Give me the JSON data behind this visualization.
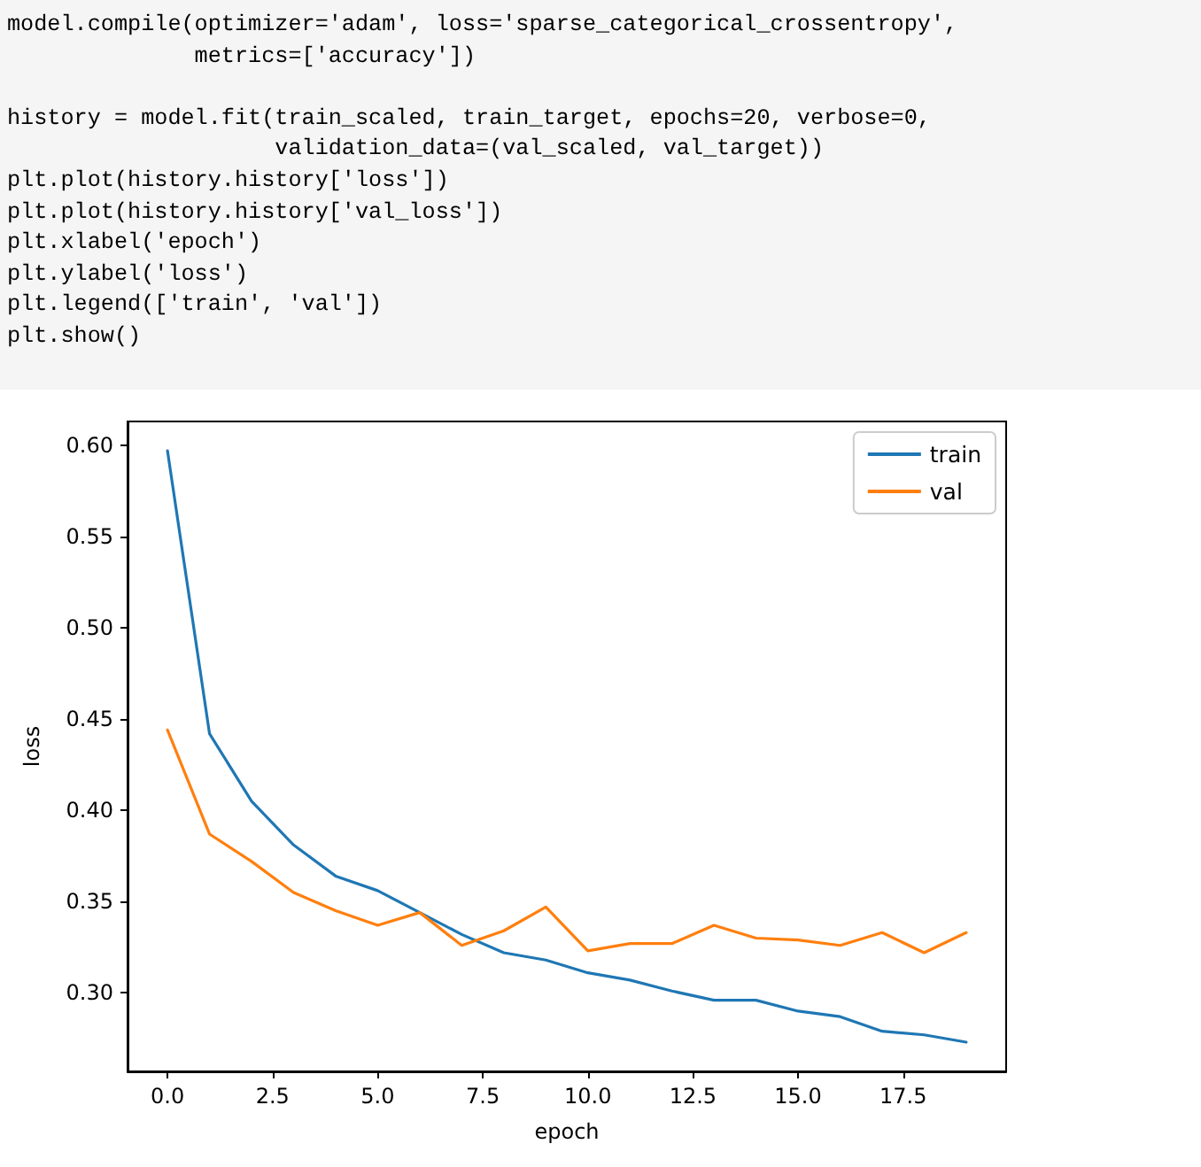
{
  "chart_data": {
    "type": "line",
    "annotations": [
      "model.compile(optimizer='adam', loss='sparse_categorical_crossentropy',\n              metrics=['accuracy'])\n\nhistory = model.fit(train_scaled, train_target, epochs=20, verbose=0,\n                    validation_data=(val_scaled, val_target))\nplt.plot(history.history['loss'])\nplt.plot(history.history['val_loss'])\nplt.xlabel('epoch')\nplt.ylabel('loss')\nplt.legend(['train', 'val'])\nplt.show()"
    ],
    "xlabel": "epoch",
    "ylabel": "loss",
    "x": [
      0,
      1,
      2,
      3,
      4,
      5,
      6,
      7,
      8,
      9,
      10,
      11,
      12,
      13,
      14,
      15,
      16,
      17,
      18,
      19
    ],
    "series": [
      {
        "name": "train",
        "color": "#1f77b4",
        "values": [
          0.597,
          0.442,
          0.405,
          0.381,
          0.364,
          0.356,
          0.344,
          0.332,
          0.322,
          0.318,
          0.311,
          0.307,
          0.301,
          0.296,
          0.296,
          0.29,
          0.287,
          0.279,
          0.277,
          0.273
        ]
      },
      {
        "name": "val",
        "color": "#ff7f0e",
        "values": [
          0.444,
          0.387,
          0.372,
          0.355,
          0.345,
          0.337,
          0.344,
          0.326,
          0.334,
          0.347,
          0.323,
          0.327,
          0.327,
          0.337,
          0.33,
          0.329,
          0.326,
          0.333,
          0.322,
          0.333
        ]
      }
    ],
    "xlim": [
      -0.95,
      19.95
    ],
    "xticks": [
      {
        "value": 0,
        "label": "0.0"
      },
      {
        "value": 2.5,
        "label": "2.5"
      },
      {
        "value": 5,
        "label": "5.0"
      },
      {
        "value": 7.5,
        "label": "7.5"
      },
      {
        "value": 10,
        "label": "10.0"
      },
      {
        "value": 12.5,
        "label": "12.5"
      },
      {
        "value": 15,
        "label": "15.0"
      },
      {
        "value": 17.5,
        "label": "17.5"
      }
    ],
    "ylim": [
      0.257,
      0.613
    ],
    "yticks": [
      {
        "value": 0.3,
        "label": "0.30"
      },
      {
        "value": 0.35,
        "label": "0.35"
      },
      {
        "value": 0.4,
        "label": "0.40"
      },
      {
        "value": 0.45,
        "label": "0.45"
      },
      {
        "value": 0.5,
        "label": "0.50"
      },
      {
        "value": 0.55,
        "label": "0.55"
      },
      {
        "value": 0.6,
        "label": "0.60"
      }
    ],
    "legend": "top right",
    "marker": "none",
    "line_style": "solid"
  }
}
